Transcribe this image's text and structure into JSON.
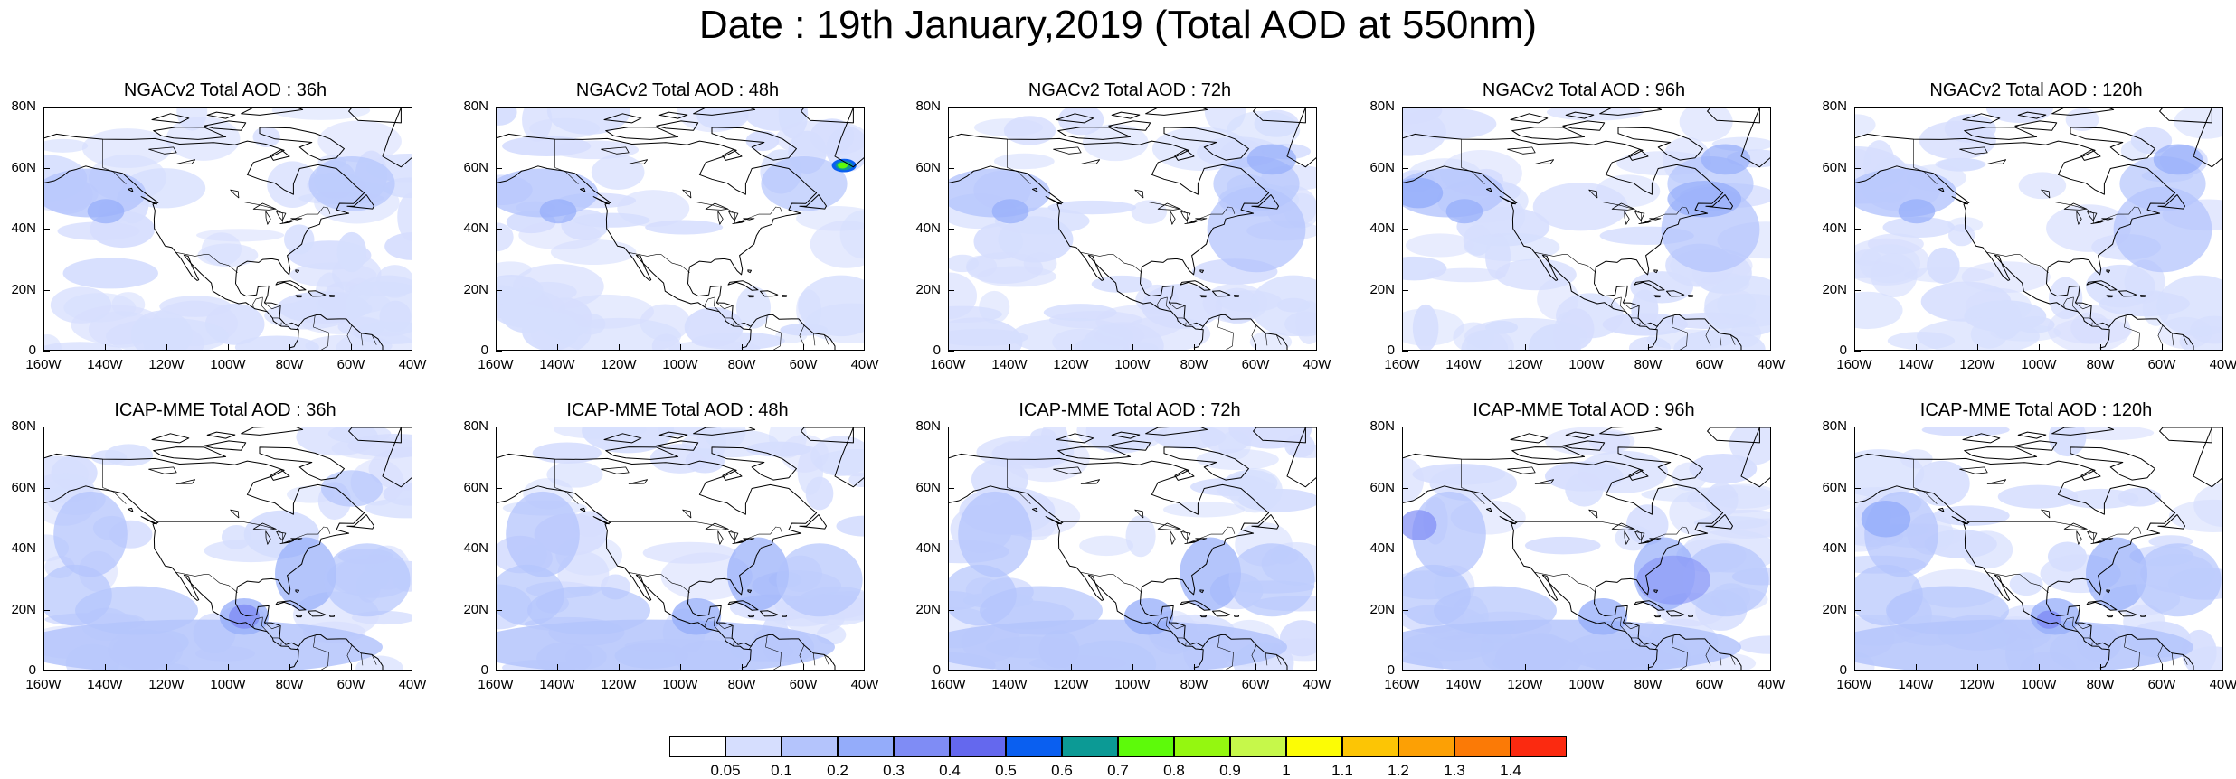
{
  "title": "Date : 19th January,2019 (Total AOD at 550nm)",
  "y_ticks": [
    "80N",
    "60N",
    "40N",
    "20N",
    "0"
  ],
  "x_ticks": [
    "160W",
    "140W",
    "120W",
    "100W",
    "80W",
    "60W",
    "40W"
  ],
  "panels": [
    {
      "label": "NGACv2 Total AOD : 36h",
      "model": "NGACv2",
      "lead": "36h",
      "hotspot": false
    },
    {
      "label": "NGACv2 Total AOD : 48h",
      "model": "NGACv2",
      "lead": "48h",
      "hotspot": true
    },
    {
      "label": "NGACv2 Total AOD : 72h",
      "model": "NGACv2",
      "lead": "72h",
      "hotspot": false
    },
    {
      "label": "NGACv2 Total AOD : 96h",
      "model": "NGACv2",
      "lead": "96h",
      "hotspot": false
    },
    {
      "label": "NGACv2 Total AOD : 120h",
      "model": "NGACv2",
      "lead": "120h",
      "hotspot": false
    },
    {
      "label": "ICAP-MME Total AOD : 36h",
      "model": "ICAP-MME",
      "lead": "36h",
      "hotspot": false
    },
    {
      "label": "ICAP-MME Total AOD : 48h",
      "model": "ICAP-MME",
      "lead": "48h",
      "hotspot": false
    },
    {
      "label": "ICAP-MME Total AOD : 72h",
      "model": "ICAP-MME",
      "lead": "72h",
      "hotspot": false
    },
    {
      "label": "ICAP-MME Total AOD : 96h",
      "model": "ICAP-MME",
      "lead": "96h",
      "hotspot": false
    },
    {
      "label": "ICAP-MME Total AOD : 120h",
      "model": "ICAP-MME",
      "lead": "120h",
      "hotspot": false
    }
  ],
  "colorbar": {
    "labels": [
      "0.05",
      "0.1",
      "0.2",
      "0.3",
      "0.4",
      "0.5",
      "0.6",
      "0.7",
      "0.8",
      "0.9",
      "1",
      "1.1",
      "1.2",
      "1.3",
      "1.4"
    ],
    "colors": [
      "#ffffff",
      "#d6defe",
      "#b4c4fc",
      "#94acfa",
      "#7f8cf5",
      "#6468ee",
      "#0a5ff0",
      "#0c9a95",
      "#5dfa0a",
      "#94f710",
      "#c6f84a",
      "#fcfc05",
      "#fcc505",
      "#fca005",
      "#fb7a06",
      "#fb2a10"
    ]
  }
}
